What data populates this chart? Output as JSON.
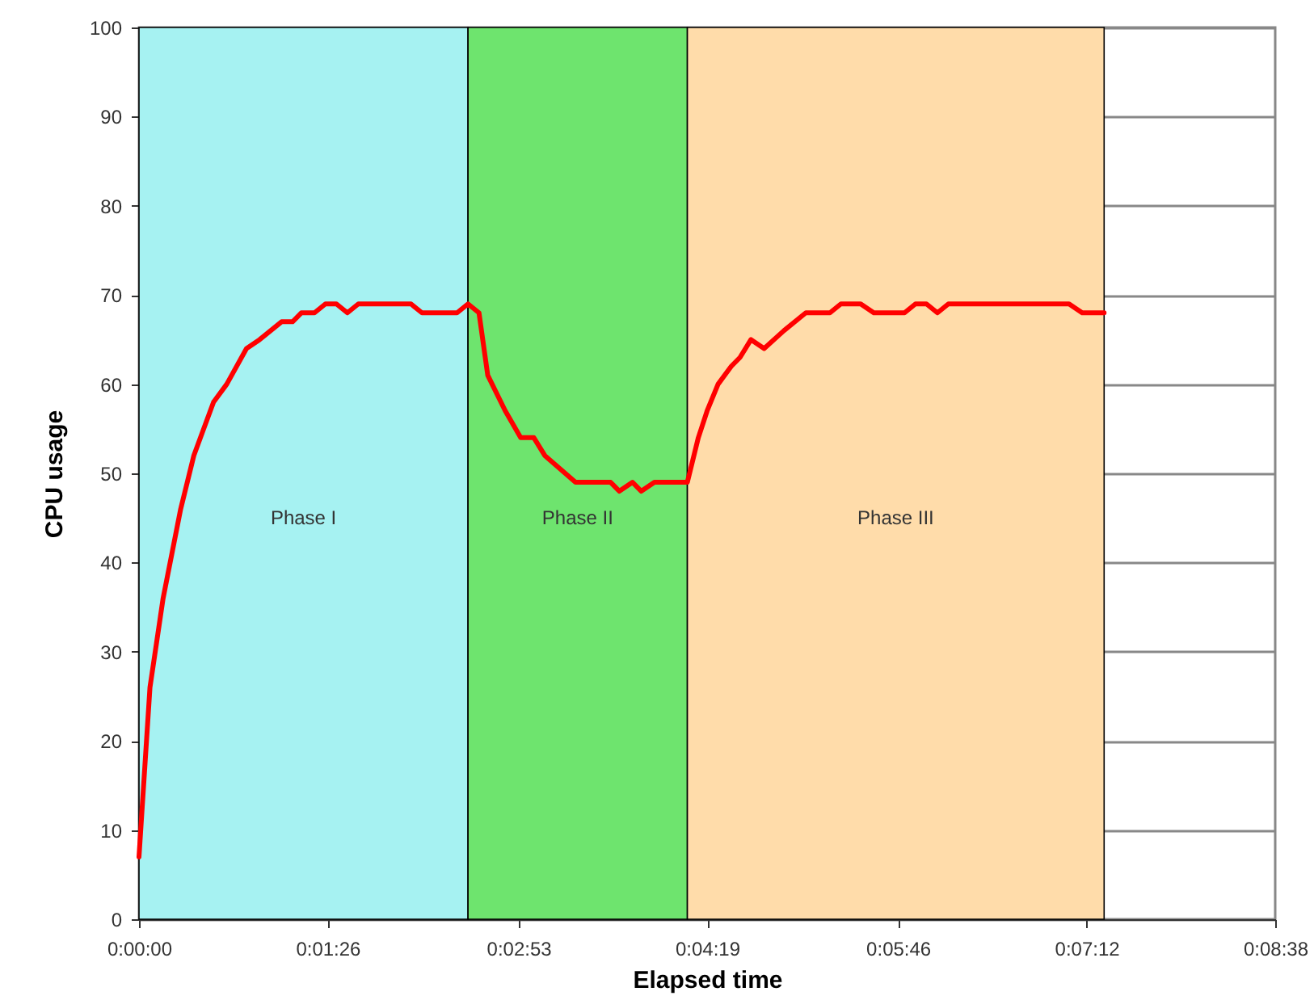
{
  "chart_data": {
    "type": "line",
    "xlabel": "Elapsed time",
    "ylabel": "CPU usage",
    "x": [
      0,
      5,
      11,
      19,
      25,
      34,
      40,
      49,
      55,
      65,
      70,
      74,
      80,
      85,
      90,
      95,
      100,
      124,
      129,
      145,
      150,
      155,
      159,
      167,
      174,
      180,
      185,
      199,
      215,
      219,
      225,
      229,
      235,
      250,
      255,
      259,
      264,
      270,
      274,
      279,
      285,
      294,
      304,
      315,
      320,
      329,
      335,
      349,
      354,
      359,
      364,
      369,
      424,
      430,
      440
    ],
    "series": [
      {
        "color": "#ff0000",
        "values": [
          7,
          26,
          36,
          46,
          52,
          58,
          60,
          64,
          65,
          67,
          67,
          68,
          68,
          69,
          69,
          68,
          69,
          69,
          68,
          68,
          69,
          68,
          61,
          57,
          54,
          54,
          52,
          49,
          49,
          48,
          49,
          48,
          49,
          49,
          54,
          57,
          60,
          62,
          63,
          65,
          64,
          66,
          68,
          68,
          69,
          69,
          68,
          68,
          69,
          69,
          68,
          69,
          69,
          68,
          68
        ]
      }
    ],
    "xlim": [
      0,
      518
    ],
    "xticks": [
      {
        "value": 0,
        "label": "0:00:00"
      },
      {
        "value": 86,
        "label": "0:01:26"
      },
      {
        "value": 173,
        "label": "0:02:53"
      },
      {
        "value": 259,
        "label": "0:04:19"
      },
      {
        "value": 346,
        "label": "0:05:46"
      },
      {
        "value": 432,
        "label": "0:07:12"
      },
      {
        "value": 518,
        "label": "0:08:38"
      }
    ],
    "ylim": [
      0,
      100
    ],
    "yticks": [
      0,
      10,
      20,
      30,
      40,
      50,
      60,
      70,
      80,
      90,
      100
    ],
    "grid": "y",
    "line_style": "solid",
    "bands": [
      {
        "axis": "x",
        "from": 0,
        "to": 150,
        "label": "Phase I",
        "color": "#a6f2f2"
      },
      {
        "axis": "x",
        "from": 150,
        "to": 250,
        "label": "Phase II",
        "color": "#6ee46e"
      },
      {
        "axis": "x",
        "from": 250,
        "to": 440,
        "label": "Phase III",
        "color": "#ffdcaa"
      }
    ]
  }
}
